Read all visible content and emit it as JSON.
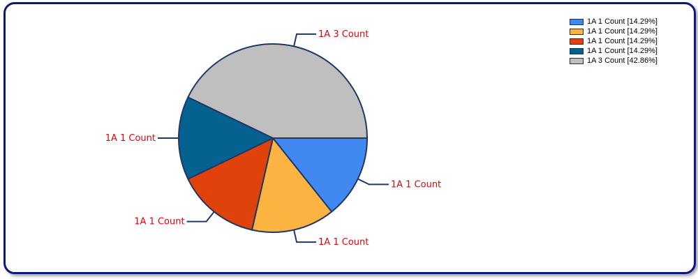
{
  "chart_data": {
    "type": "pie",
    "categories": [
      "1A 1 Count",
      "1A 1 Count",
      "1A 1 Count",
      "1A 1 Count",
      "1A 3 Count"
    ],
    "values": [
      1,
      1,
      1,
      1,
      3
    ],
    "percents": [
      "14.29%",
      "14.29%",
      "14.29%",
      "14.29%",
      "42.86%"
    ],
    "colors": [
      "#4189f0",
      "#fbb441",
      "#df420b",
      "#056290",
      "#bfbfbf"
    ],
    "slice_labels": [
      "1A 1 Count",
      "1A 1 Count",
      "1A 1 Count",
      "1A 1 Count",
      "1A 3 Count"
    ],
    "legend_entries": [
      "1A 1 Count [14.29%]",
      "1A 1 Count [14.29%]",
      "1A 1 Count [14.29%]",
      "1A 1 Count [14.29%]",
      "1A 3 Count [42.86%]"
    ],
    "legend_placement": "top-right",
    "label_color": "#e8000b",
    "outline_color": "#1f3864"
  }
}
